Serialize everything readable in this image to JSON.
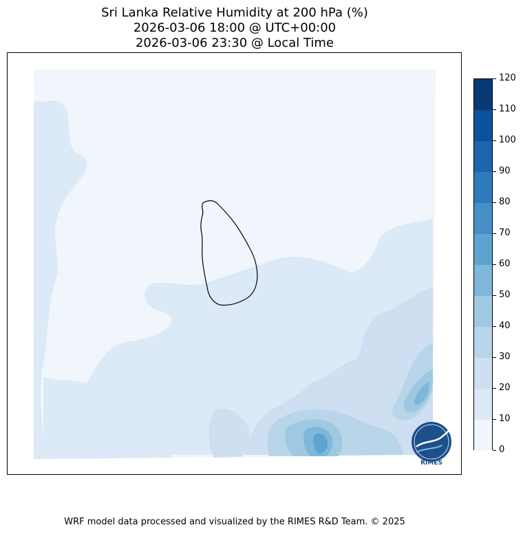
{
  "title": {
    "line1": "Sri Lanka Relative Humidity at 200 hPa (%)",
    "line2": "2026-03-06 18:00 @ UTC+00:00",
    "line3": "2026-03-06 23:30 @ Local Time"
  },
  "colorbar": {
    "levels": [
      0,
      10,
      20,
      30,
      40,
      50,
      60,
      70,
      80,
      90,
      100,
      110,
      120
    ],
    "labels": [
      "0",
      "10",
      "20",
      "30",
      "40",
      "50",
      "60",
      "70",
      "80",
      "90",
      "100",
      "110",
      "120"
    ],
    "colors": [
      "#f0f6fc",
      "#dce9f6",
      "#cddff1",
      "#b8d5ea",
      "#9ec9e1",
      "#7eb7da",
      "#5fa3d0",
      "#458fc6",
      "#2e7bbc",
      "#1c66ad",
      "#0b519c",
      "#083a75"
    ]
  },
  "logo": {
    "text": "RIMES"
  },
  "footer": "WRF model data processed and visualized by the RIMES R&D Team. © 2025"
}
